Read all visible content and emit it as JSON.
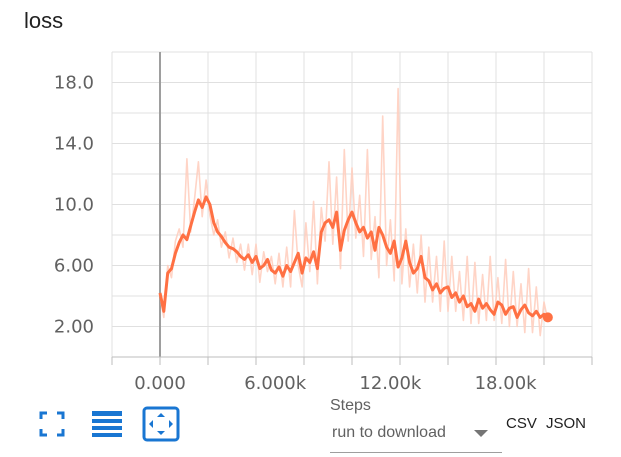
{
  "card": {
    "title": "loss",
    "toolbar": {
      "fullscreen_icon": "fullscreen-icon",
      "data_table_icon": "list-icon",
      "fit_domain_icon": "fit-to-data-icon",
      "accent_color": "#1976d2"
    },
    "x_axis_selector": {
      "label": "Steps",
      "selected": "run to download"
    },
    "downloads": {
      "csv": "CSV",
      "json": "JSON"
    }
  },
  "chart_data": {
    "type": "line",
    "title": "loss",
    "xlabel": "",
    "ylabel": "",
    "xlim": [
      -2500,
      22500
    ],
    "ylim": [
      0,
      20
    ],
    "x_ticks": [
      0,
      6000,
      12000,
      18000
    ],
    "x_tick_labels": [
      "0.000",
      "6.000k",
      "12.00k",
      "18.00k"
    ],
    "y_ticks": [
      2,
      6,
      10,
      14,
      18
    ],
    "y_tick_labels": [
      "2.00",
      "6.00",
      "10.0",
      "14.0",
      "18.0"
    ],
    "grid": true,
    "colors": {
      "smoothed": "#ff7043",
      "raw": "#ffccbc",
      "grid": "#e0e0e0",
      "origin_line": "#9e9e9e"
    },
    "series": [
      {
        "role": "smoothed",
        "x": [
          0,
          200,
          400,
          600,
          800,
          1000,
          1200,
          1400,
          1600,
          1800,
          2000,
          2200,
          2400,
          2600,
          2800,
          3000,
          3200,
          3400,
          3600,
          3800,
          4000,
          4200,
          4400,
          4600,
          4800,
          5000,
          5200,
          5400,
          5600,
          5800,
          6000,
          6200,
          6400,
          6600,
          6800,
          7000,
          7200,
          7400,
          7600,
          7800,
          8000,
          8200,
          8400,
          8600,
          8800,
          9000,
          9200,
          9400,
          9600,
          9800,
          10000,
          10200,
          10400,
          10600,
          10800,
          11000,
          11200,
          11400,
          11600,
          11800,
          12000,
          12200,
          12400,
          12600,
          12800,
          13000,
          13200,
          13400,
          13600,
          13800,
          14000,
          14200,
          14400,
          14600,
          14800,
          15000,
          15200,
          15400,
          15600,
          15800,
          16000,
          16200,
          16400,
          16600,
          16800,
          17000,
          17200,
          17400,
          17600,
          17800,
          18000,
          18200,
          18400,
          18600,
          18800,
          19000,
          19200,
          19400,
          19600,
          19800,
          20000,
          20200
        ],
        "y": [
          4.2,
          3.0,
          5.5,
          5.8,
          6.8,
          7.5,
          8.0,
          7.7,
          8.6,
          9.5,
          10.3,
          9.8,
          10.5,
          10.0,
          8.8,
          8.2,
          7.9,
          7.5,
          7.2,
          7.1,
          6.9,
          6.6,
          6.4,
          6.7,
          6.2,
          6.6,
          5.8,
          6.0,
          6.4,
          5.7,
          5.5,
          5.9,
          5.3,
          6.0,
          5.6,
          6.2,
          6.8,
          5.5,
          6.5,
          6.2,
          6.9,
          5.8,
          8.2,
          8.8,
          9.0,
          8.5,
          9.5,
          7.0,
          8.3,
          9.0,
          9.5,
          8.8,
          8.2,
          8.5,
          7.8,
          8.2,
          7.0,
          8.5,
          8.0,
          7.2,
          6.8,
          7.6,
          5.9,
          6.5,
          7.6,
          6.2,
          5.5,
          5.8,
          6.6,
          5.2,
          5.0,
          4.4,
          4.8,
          4.2,
          4.5,
          4.6,
          3.9,
          4.2,
          3.6,
          4.0,
          3.3,
          3.5,
          3.0,
          3.8,
          3.2,
          3.5,
          3.1,
          2.8,
          3.6,
          3.4,
          2.8,
          3.2,
          3.3,
          2.6,
          3.1,
          3.4,
          2.9,
          2.7,
          3.0,
          2.6,
          2.8,
          2.6
        ]
      },
      {
        "role": "raw",
        "x": [
          0,
          200,
          400,
          600,
          800,
          1000,
          1200,
          1400,
          1600,
          1800,
          2000,
          2200,
          2400,
          2600,
          2800,
          3000,
          3200,
          3400,
          3600,
          3800,
          4000,
          4200,
          4400,
          4600,
          4800,
          5000,
          5200,
          5400,
          5600,
          5800,
          6000,
          6200,
          6400,
          6600,
          6800,
          7000,
          7200,
          7400,
          7600,
          7800,
          8000,
          8200,
          8400,
          8600,
          8800,
          9000,
          9200,
          9400,
          9600,
          9800,
          10000,
          10200,
          10400,
          10600,
          10800,
          11000,
          11200,
          11400,
          11600,
          11800,
          12000,
          12200,
          12400,
          12600,
          12800,
          13000,
          13200,
          13400,
          13600,
          13800,
          14000,
          14200,
          14400,
          14600,
          14800,
          15000,
          15200,
          15400,
          15600,
          15800,
          16000,
          16200,
          16400,
          16600,
          16800,
          17000,
          17200,
          17400,
          17600,
          17800,
          18000,
          18200,
          18400,
          18600,
          18800,
          19000,
          19200,
          19400,
          19600,
          19800,
          20000,
          20200
        ],
        "y": [
          4.0,
          2.6,
          6.0,
          5.2,
          7.6,
          8.4,
          7.2,
          13.0,
          8.2,
          10.4,
          12.8,
          9.2,
          11.6,
          9.3,
          8.0,
          9.0,
          7.2,
          8.2,
          6.5,
          7.8,
          6.2,
          7.4,
          5.7,
          7.4,
          5.4,
          7.4,
          4.9,
          6.9,
          5.6,
          6.6,
          4.8,
          6.8,
          4.6,
          7.2,
          4.6,
          9.6,
          6.0,
          4.6,
          8.8,
          5.6,
          10.2,
          4.8,
          9.8,
          7.6,
          12.8,
          7.4,
          11.8,
          5.8,
          13.6,
          7.6,
          12.4,
          7.8,
          10.6,
          6.6,
          13.6,
          6.4,
          9.2,
          5.2,
          15.8,
          6.0,
          9.0,
          5.0,
          17.6,
          4.8,
          8.4,
          4.6,
          7.4,
          4.2,
          8.0,
          3.6,
          7.2,
          3.6,
          6.6,
          3.0,
          7.6,
          3.0,
          6.6,
          3.0,
          5.6,
          2.4,
          6.6,
          2.2,
          6.2,
          2.2,
          5.4,
          2.4,
          6.6,
          2.4,
          5.2,
          2.2,
          6.4,
          2.0,
          5.6,
          2.0,
          4.8,
          1.6,
          5.8,
          1.6,
          4.6,
          1.4,
          3.6,
          2.4
        ]
      }
    ]
  }
}
